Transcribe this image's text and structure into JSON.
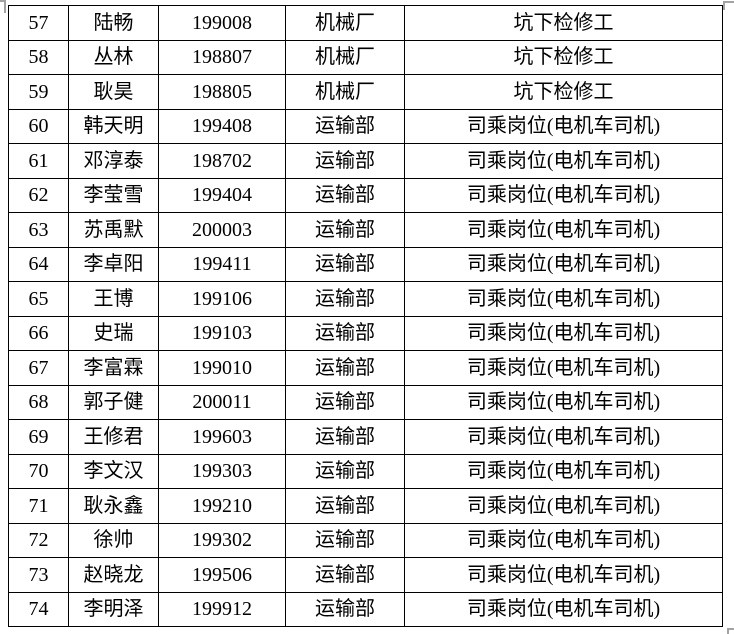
{
  "colors": {
    "background": "#ffffff",
    "border": "#000000",
    "text": "#000000",
    "handle": "#a3a3a3"
  },
  "table": {
    "column_keys": [
      "no",
      "name",
      "emp_id",
      "department",
      "position"
    ],
    "rows": [
      {
        "no": "57",
        "name": "陆畅",
        "emp_id": "199008",
        "department": "机械厂",
        "position": "坑下检修工"
      },
      {
        "no": "58",
        "name": "丛林",
        "emp_id": "198807",
        "department": "机械厂",
        "position": "坑下检修工"
      },
      {
        "no": "59",
        "name": "耿昊",
        "emp_id": "198805",
        "department": "机械厂",
        "position": "坑下检修工"
      },
      {
        "no": "60",
        "name": "韩天明",
        "emp_id": "199408",
        "department": "运输部",
        "position": "司乘岗位(电机车司机)"
      },
      {
        "no": "61",
        "name": "邓淳泰",
        "emp_id": "198702",
        "department": "运输部",
        "position": "司乘岗位(电机车司机)"
      },
      {
        "no": "62",
        "name": "李莹雪",
        "emp_id": "199404",
        "department": "运输部",
        "position": "司乘岗位(电机车司机)"
      },
      {
        "no": "63",
        "name": "苏禹默",
        "emp_id": "200003",
        "department": "运输部",
        "position": "司乘岗位(电机车司机)"
      },
      {
        "no": "64",
        "name": "李卓阳",
        "emp_id": "199411",
        "department": "运输部",
        "position": "司乘岗位(电机车司机)"
      },
      {
        "no": "65",
        "name": "王博",
        "emp_id": "199106",
        "department": "运输部",
        "position": "司乘岗位(电机车司机)"
      },
      {
        "no": "66",
        "name": "史瑞",
        "emp_id": "199103",
        "department": "运输部",
        "position": "司乘岗位(电机车司机)"
      },
      {
        "no": "67",
        "name": "李富霖",
        "emp_id": "199010",
        "department": "运输部",
        "position": "司乘岗位(电机车司机)"
      },
      {
        "no": "68",
        "name": "郭子健",
        "emp_id": "200011",
        "department": "运输部",
        "position": "司乘岗位(电机车司机)"
      },
      {
        "no": "69",
        "name": "王修君",
        "emp_id": "199603",
        "department": "运输部",
        "position": "司乘岗位(电机车司机)"
      },
      {
        "no": "70",
        "name": "李文汉",
        "emp_id": "199303",
        "department": "运输部",
        "position": "司乘岗位(电机车司机)"
      },
      {
        "no": "71",
        "name": "耿永鑫",
        "emp_id": "199210",
        "department": "运输部",
        "position": "司乘岗位(电机车司机)"
      },
      {
        "no": "72",
        "name": "徐帅",
        "emp_id": "199302",
        "department": "运输部",
        "position": "司乘岗位(电机车司机)"
      },
      {
        "no": "73",
        "name": "赵晓龙",
        "emp_id": "199506",
        "department": "运输部",
        "position": "司乘岗位(电机车司机)"
      },
      {
        "no": "74",
        "name": "李明泽",
        "emp_id": "199912",
        "department": "运输部",
        "position": "司乘岗位(电机车司机)"
      }
    ]
  }
}
